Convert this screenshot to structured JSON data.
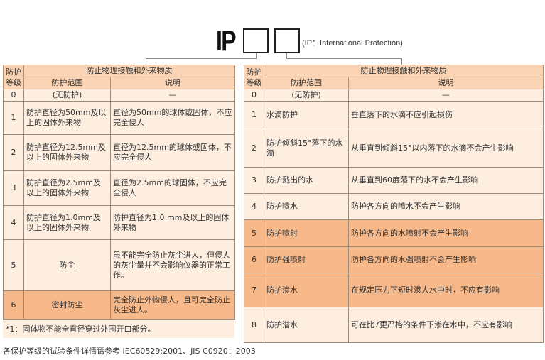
{
  "header": {
    "title": "IP",
    "subtitle": "(IP：International Protection)"
  },
  "colors": {
    "header": "#f9d3b3",
    "row": "#fdeee0",
    "highlight": "#f7b98a"
  },
  "left_table": {
    "h_grade": "防护等级",
    "h_group": "防止物理接触和外来物质",
    "h_scope": "防护范围",
    "h_desc": "说明",
    "rows": [
      {
        "level": "0",
        "scope": "(无防护)",
        "desc": "—"
      },
      {
        "level": "1",
        "scope": "防护直径为50mm及以上的固体外来物",
        "desc": "直径为50mm的球体或固体，不应完全侵人"
      },
      {
        "level": "2",
        "scope": "防护直径为12.5mm及以上的固体外来物",
        "desc": "直径为12.5mm的球体或固体，不应完全侵人"
      },
      {
        "level": "3",
        "scope": "防护直径为2.5mm及以上的固体外来物",
        "desc": "直径为2.5mm的球固体，不应完全侵人"
      },
      {
        "level": "4",
        "scope": "防护直径为1.0mm及以上的固体外来物",
        "desc": "防护直径为1.0 mm及以上的固体外来物"
      },
      {
        "level": "5",
        "scope": "防尘",
        "desc": "虽不能完全防止灰尘进人，但侵人的灰尘量并不会影响仪器的正常工作。"
      },
      {
        "level": "6",
        "scope": "密封防尘",
        "desc": "完全防止外物侵人，且可完全防止灰尘进人。"
      }
    ],
    "note": "*1：固体物不能全直径穿过外围开口部分。"
  },
  "right_table": {
    "h_grade": "防护等级",
    "h_group": "防止物理接触和外来物质",
    "h_scope": "防护范围",
    "h_desc": "说明",
    "rows": [
      {
        "level": "0",
        "scope": "(无防护)",
        "desc": "—"
      },
      {
        "level": "1",
        "scope": "水滴防护",
        "desc": "垂直落下的水滴不应引起损伤"
      },
      {
        "level": "2",
        "scope": "防护倾斜15°落下的水滴",
        "desc": "从垂直到倾斜15°以内落下的水滴不会产生影响"
      },
      {
        "level": "3",
        "scope": "防护溅出的水",
        "desc": "从垂直到60度落下的水不会产生影响"
      },
      {
        "level": "4",
        "scope": "防护喷水",
        "desc": "防护各方向的喷水不会产生影响"
      },
      {
        "level": "5",
        "scope": "防护喷射",
        "desc": "防护各方向的水喷射不会产生影响"
      },
      {
        "level": "6",
        "scope": "防护强喷射",
        "desc": "防护各方向的水强喷射不会产生影响"
      },
      {
        "level": "7",
        "scope": "防护渗水",
        "desc": "在规定压力下短时渗人水中时，不应有影响"
      },
      {
        "level": "8",
        "scope": "防护潜水",
        "desc": "可在比7更严格的条件下渗在水中，不应有影响"
      }
    ]
  },
  "footer": "各保护等级的试验条件详情请参考 IEC60529:2001、JIS C0920：2003"
}
